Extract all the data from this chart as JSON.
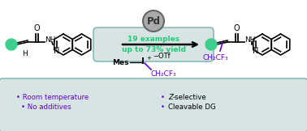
{
  "bg_color": "#ffffff",
  "box_color": "#d6e4e4",
  "box_border_color": "#8ab8b8",
  "teal_color": "#2dc888",
  "purple_color": "#6600cc",
  "green_ball_color": "#3ecf8e",
  "pd_circle_color": "#aaaaaa",
  "pd_circle_edge": "#666666",
  "arrow_color": "#000000",
  "text_19examples": "19 examples\nup to 73% yield",
  "text_19_color": "#22cc77",
  "text_left1": "Room temperature",
  "text_left2": "No additives",
  "text_right1": "Z-selective",
  "text_right2": "Cleavable DG",
  "bullet_color": "#6600cc",
  "pd_label": "Pd",
  "fig_width": 3.78,
  "fig_height": 1.62,
  "dpi": 100
}
